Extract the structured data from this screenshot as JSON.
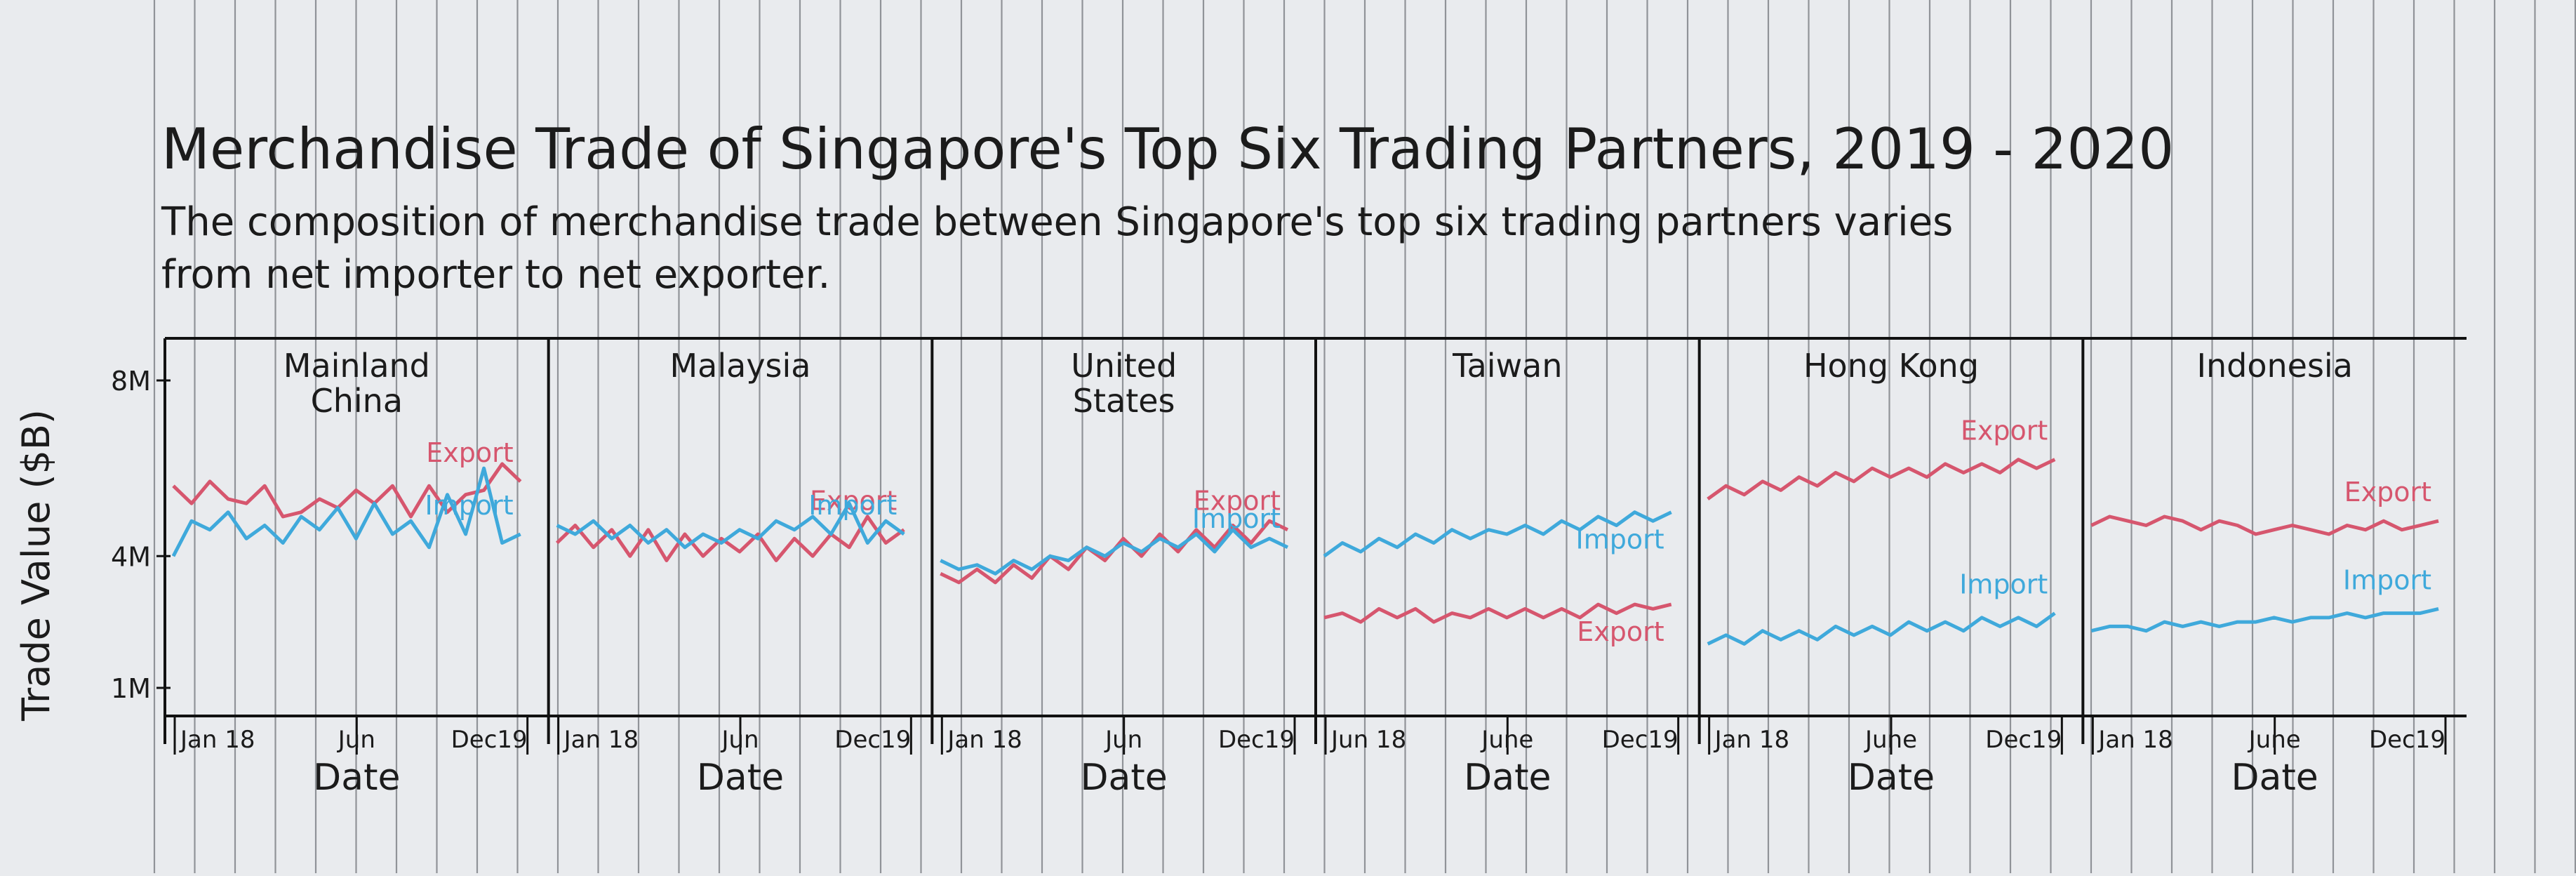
{
  "chart_data": {
    "type": "line",
    "title": "Merchandise Trade of Singapore's Top Six Trading Partners, 2019 - 2020",
    "subtitle": "The composition of merchandise trade between Singapore's top six trading partners varies from net importer to net exporter.",
    "ylabel": "Trade Value ($B)",
    "yticks": [
      "8M",
      "4M",
      "1M"
    ],
    "ylim": [
      1,
      8
    ],
    "colors": {
      "export": "#d6566e",
      "import": "#3fa9db"
    },
    "panels": [
      {
        "name": "Mainland China",
        "name_lines": [
          "Mainland",
          "China"
        ],
        "xticks": [
          "Jan 18",
          "Jun",
          "Dec19"
        ],
        "xlabel": "Date",
        "series": [
          {
            "name": "Export",
            "values": [
              5.6,
              5.2,
              5.7,
              5.3,
              5.2,
              5.6,
              4.9,
              5.0,
              5.3,
              5.1,
              5.5,
              5.2,
              5.6,
              4.9,
              5.6,
              5.0,
              5.4,
              5.5,
              6.1,
              5.7
            ]
          },
          {
            "name": "Import",
            "values": [
              4.0,
              4.8,
              4.6,
              5.0,
              4.4,
              4.7,
              4.3,
              4.9,
              4.6,
              5.1,
              4.4,
              5.2,
              4.5,
              4.8,
              4.2,
              5.4,
              4.5,
              6.0,
              4.3,
              4.5
            ]
          }
        ]
      },
      {
        "name": "Malaysia",
        "name_lines": [
          "Malaysia"
        ],
        "xticks": [
          "Jan 18",
          "Jun",
          "Dec19"
        ],
        "xlabel": "Date",
        "series": [
          {
            "name": "Export",
            "values": [
              4.3,
              4.7,
              4.2,
              4.6,
              4.0,
              4.6,
              3.9,
              4.5,
              4.0,
              4.4,
              4.1,
              4.5,
              3.9,
              4.4,
              4.0,
              4.5,
              4.2,
              4.9,
              4.3,
              4.6
            ]
          },
          {
            "name": "Import",
            "values": [
              4.7,
              4.5,
              4.8,
              4.4,
              4.7,
              4.3,
              4.6,
              4.2,
              4.5,
              4.3,
              4.6,
              4.4,
              4.8,
              4.6,
              4.9,
              4.5,
              5.2,
              4.3,
              4.8,
              4.5
            ]
          }
        ]
      },
      {
        "name": "United States",
        "name_lines": [
          "United",
          "States"
        ],
        "xticks": [
          "Jan 18",
          "Jun",
          "Dec19"
        ],
        "xlabel": "Date",
        "series": [
          {
            "name": "Export",
            "values": [
              3.6,
              3.4,
              3.7,
              3.4,
              3.8,
              3.5,
              4.0,
              3.7,
              4.2,
              3.9,
              4.4,
              4.0,
              4.5,
              4.1,
              4.6,
              4.2,
              4.7,
              4.3,
              4.8,
              4.6
            ]
          },
          {
            "name": "Import",
            "values": [
              3.9,
              3.7,
              3.8,
              3.6,
              3.9,
              3.7,
              4.0,
              3.9,
              4.2,
              4.0,
              4.3,
              4.1,
              4.4,
              4.2,
              4.5,
              4.1,
              4.6,
              4.2,
              4.4,
              4.2
            ]
          }
        ]
      },
      {
        "name": "Taiwan",
        "name_lines": [
          "Taiwan"
        ],
        "xticks": [
          "Jun 18",
          "June",
          "Dec19"
        ],
        "xlabel": "Date",
        "series": [
          {
            "name": "Export",
            "values": [
              2.6,
              2.7,
              2.5,
              2.8,
              2.6,
              2.8,
              2.5,
              2.7,
              2.6,
              2.8,
              2.6,
              2.8,
              2.6,
              2.8,
              2.6,
              2.9,
              2.7,
              2.9,
              2.8,
              2.9
            ]
          },
          {
            "name": "Import",
            "values": [
              4.0,
              4.3,
              4.1,
              4.4,
              4.2,
              4.5,
              4.3,
              4.6,
              4.4,
              4.6,
              4.5,
              4.7,
              4.5,
              4.8,
              4.6,
              4.9,
              4.7,
              5.0,
              4.8,
              5.0
            ]
          }
        ]
      },
      {
        "name": "Hong Kong",
        "name_lines": [
          "Hong Kong"
        ],
        "xticks": [
          "Jan 18",
          "June",
          "Dec19"
        ],
        "xlabel": "Date",
        "series": [
          {
            "name": "Export",
            "values": [
              5.3,
              5.6,
              5.4,
              5.7,
              5.5,
              5.8,
              5.6,
              5.9,
              5.7,
              6.0,
              5.8,
              6.0,
              5.8,
              6.1,
              5.9,
              6.1,
              5.9,
              6.2,
              6.0,
              6.2
            ]
          },
          {
            "name": "Import",
            "values": [
              2.0,
              2.2,
              2.0,
              2.3,
              2.1,
              2.3,
              2.1,
              2.4,
              2.2,
              2.4,
              2.2,
              2.5,
              2.3,
              2.5,
              2.3,
              2.6,
              2.4,
              2.6,
              2.4,
              2.7
            ]
          }
        ]
      },
      {
        "name": "Indonesia",
        "name_lines": [
          "Indonesia"
        ],
        "xticks": [
          "Jan 18",
          "June",
          "Dec19"
        ],
        "xlabel": "Date",
        "series": [
          {
            "name": "Export",
            "values": [
              4.7,
              4.9,
              4.8,
              4.7,
              4.9,
              4.8,
              4.6,
              4.8,
              4.7,
              4.5,
              4.6,
              4.7,
              4.6,
              4.5,
              4.7,
              4.6,
              4.8,
              4.6,
              4.7,
              4.8
            ]
          },
          {
            "name": "Import",
            "values": [
              2.3,
              2.4,
              2.4,
              2.3,
              2.5,
              2.4,
              2.5,
              2.4,
              2.5,
              2.5,
              2.6,
              2.5,
              2.6,
              2.6,
              2.7,
              2.6,
              2.7,
              2.7,
              2.7,
              2.8
            ]
          }
        ]
      }
    ]
  }
}
